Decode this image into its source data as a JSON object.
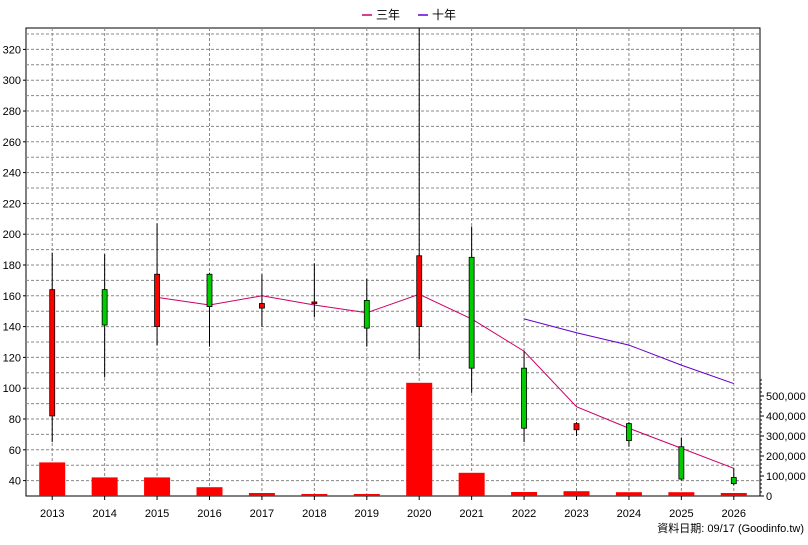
{
  "legend": {
    "items": [
      {
        "label": "三年",
        "color": "#cc0066"
      },
      {
        "label": "十年",
        "color": "#6600cc"
      }
    ]
  },
  "source_note": "資料日期: 09/17  (Goodinfo.tw)",
  "chart_data": {
    "type": "candlestick",
    "categories": [
      "2013",
      "2014",
      "2015",
      "2016",
      "2017",
      "2018",
      "2019",
      "2020",
      "2021",
      "2022",
      "2023",
      "2024",
      "2025",
      "2026"
    ],
    "price_axis": {
      "ylim": [
        30,
        330
      ],
      "ticks": [
        40,
        60,
        80,
        100,
        120,
        140,
        160,
        180,
        200,
        220,
        240,
        260,
        280,
        300,
        320
      ]
    },
    "volume_axis": {
      "ylim": [
        0,
        600000
      ],
      "ticks": [
        0,
        100000,
        200000,
        300000,
        400000,
        500000
      ],
      "tick_labels": [
        "0",
        "100,000",
        "200,000",
        "300,000",
        "400,000",
        "500,000"
      ]
    },
    "ohlc": [
      {
        "x": "2013",
        "open": 164,
        "high": 188,
        "low": 65,
        "close": 82
      },
      {
        "x": "2014",
        "open": 141,
        "high": 187,
        "low": 107,
        "close": 164
      },
      {
        "x": "2015",
        "open": 174,
        "high": 207,
        "low": 128,
        "close": 140
      },
      {
        "x": "2016",
        "open": 153,
        "high": 175,
        "low": 127,
        "close": 174
      },
      {
        "x": "2017",
        "open": 155,
        "high": 174,
        "low": 140,
        "close": 152
      },
      {
        "x": "2018",
        "open": 156,
        "high": 181,
        "low": 146,
        "close": 155
      },
      {
        "x": "2019",
        "open": 139,
        "high": 171,
        "low": 127,
        "close": 157
      },
      {
        "x": "2020",
        "open": 186,
        "high": 334,
        "low": 119,
        "close": 140
      },
      {
        "x": "2021",
        "open": 113,
        "high": 205,
        "low": 97,
        "close": 185
      },
      {
        "x": "2022",
        "open": 74,
        "high": 124,
        "low": 65,
        "close": 113
      },
      {
        "x": "2023",
        "open": 77,
        "high": 78,
        "low": 69,
        "close": 73
      },
      {
        "x": "2024",
        "open": 66,
        "high": 78,
        "low": 62,
        "close": 77
      },
      {
        "x": "2025",
        "open": 41,
        "high": 68,
        "low": 40,
        "close": 62
      },
      {
        "x": "2026",
        "open": 38,
        "high": 48,
        "low": 37,
        "close": 42
      }
    ],
    "volume": [
      {
        "x": "2013",
        "value": 168000
      },
      {
        "x": "2014",
        "value": 93000
      },
      {
        "x": "2015",
        "value": 93000
      },
      {
        "x": "2016",
        "value": 44000
      },
      {
        "x": "2017",
        "value": 15000
      },
      {
        "x": "2018",
        "value": 10000
      },
      {
        "x": "2019",
        "value": 10000
      },
      {
        "x": "2020",
        "value": 566000
      },
      {
        "x": "2021",
        "value": 116000
      },
      {
        "x": "2022",
        "value": 20000
      },
      {
        "x": "2023",
        "value": 24000
      },
      {
        "x": "2024",
        "value": 19000
      },
      {
        "x": "2025",
        "value": 19000
      },
      {
        "x": "2026",
        "value": 15000
      }
    ],
    "series": [
      {
        "name": "三年",
        "color": "#cc0066",
        "points": [
          [
            "2015",
            159
          ],
          [
            "2016",
            154
          ],
          [
            "2017",
            160
          ],
          [
            "2018",
            154
          ],
          [
            "2019",
            149
          ],
          [
            "2020",
            161
          ],
          [
            "2021",
            145
          ],
          [
            "2022",
            124
          ],
          [
            "2023",
            88
          ],
          [
            "2024",
            74
          ],
          [
            "2025",
            61
          ],
          [
            "2026",
            48
          ]
        ]
      },
      {
        "name": "十年",
        "color": "#6600cc",
        "points": [
          [
            "2022",
            145
          ],
          [
            "2023",
            136
          ],
          [
            "2024",
            128
          ],
          [
            "2025",
            115
          ],
          [
            "2026",
            103
          ]
        ]
      }
    ],
    "colors": {
      "up": "#00cc00",
      "down": "#ff0000",
      "volume": "#ff0000",
      "grid": "#888888"
    },
    "grid": true,
    "legend_position": "top-center"
  }
}
